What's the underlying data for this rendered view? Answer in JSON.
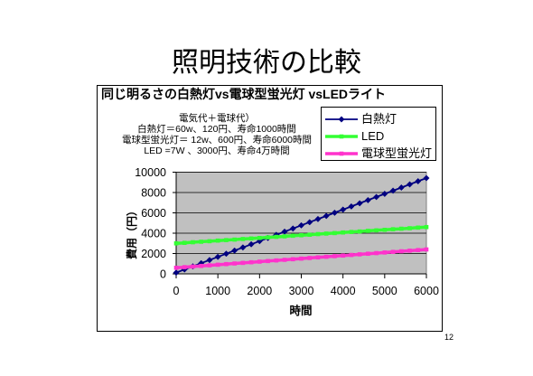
{
  "slide": {
    "title": "照明技術の比較",
    "page_number": "12"
  },
  "chart_data": {
    "type": "line",
    "title": "同じ明るさの白熱灯vs電球型蛍光灯 vsLEDライト",
    "xlabel": "時間",
    "ylabel": "費用（円）",
    "annotation": [
      "電気代＋電球代）",
      "白熱灯＝60w、120円、寿命1000時間",
      "電球型蛍光灯＝ 12w、600円、寿命6000時間",
      "LED =7W 、3000円、寿命4万時間"
    ],
    "xlim": [
      0,
      6000
    ],
    "ylim": [
      0,
      10000
    ],
    "x_ticks": [
      0,
      1000,
      2000,
      3000,
      4000,
      5000,
      6000
    ],
    "y_ticks": [
      0,
      2000,
      4000,
      6000,
      8000,
      10000
    ],
    "grid": true,
    "legend_position": "top-right",
    "plot_background": "#c0c0c0",
    "x": [
      0,
      200,
      400,
      600,
      800,
      1000,
      1200,
      1400,
      1600,
      1800,
      2000,
      2200,
      2400,
      2600,
      2800,
      3000,
      3200,
      3400,
      3600,
      3800,
      4000,
      4200,
      4400,
      4600,
      4800,
      5000,
      5200,
      5400,
      5600,
      5800,
      6000
    ],
    "series": [
      {
        "name": "白熱灯",
        "color": "#000080",
        "marker": "diamond",
        "values": [
          120,
          430,
          740,
          1050,
          1360,
          1670,
          1980,
          2290,
          2600,
          2910,
          3220,
          3530,
          3840,
          4150,
          4460,
          4770,
          5080,
          5390,
          5700,
          6010,
          6320,
          6630,
          6940,
          7250,
          7560,
          7870,
          8180,
          8490,
          8800,
          9110,
          9420
        ]
      },
      {
        "name": "LED",
        "color": "#33ff33",
        "marker": "square",
        "values": [
          3000,
          3050,
          3110,
          3160,
          3210,
          3270,
          3320,
          3370,
          3430,
          3480,
          3530,
          3590,
          3640,
          3690,
          3750,
          3800,
          3850,
          3910,
          3960,
          4010,
          4070,
          4120,
          4170,
          4230,
          4280,
          4330,
          4390,
          4440,
          4490,
          4550,
          4600
        ]
      },
      {
        "name": "電球型蛍光灯",
        "color": "#ff33cc",
        "marker": "square",
        "values": [
          600,
          660,
          720,
          780,
          840,
          900,
          960,
          1020,
          1080,
          1140,
          1200,
          1260,
          1320,
          1380,
          1440,
          1500,
          1560,
          1620,
          1680,
          1740,
          1800,
          1860,
          1920,
          1980,
          2040,
          2100,
          2160,
          2220,
          2280,
          2340,
          2400
        ]
      }
    ]
  }
}
